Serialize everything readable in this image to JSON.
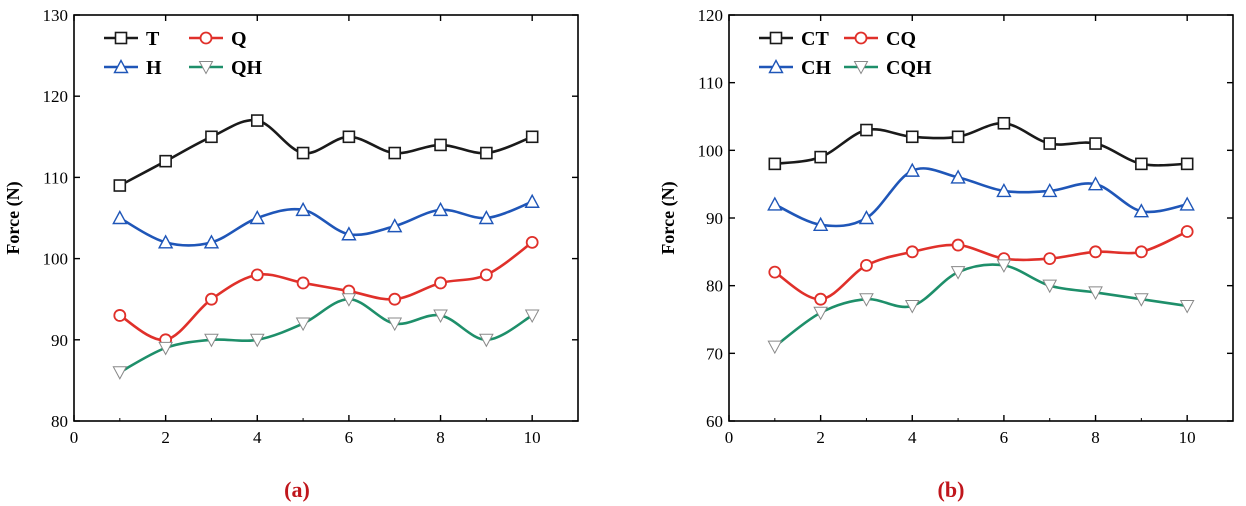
{
  "colors": {
    "T": "#1a1a1a",
    "Q": "#e0302a",
    "H": "#1f56b8",
    "QH": "#1e8f6a",
    "caption": "#c0161c"
  },
  "chart_data": [
    {
      "type": "line",
      "caption": "(a)",
      "ylabel": "Force (N)",
      "xlabel": "",
      "xlim": [
        0,
        11
      ],
      "ylim": [
        80,
        130
      ],
      "xticks": [
        0,
        2,
        4,
        6,
        8,
        10
      ],
      "yticks": [
        80,
        90,
        100,
        110,
        120,
        130
      ],
      "x": [
        1,
        2,
        3,
        4,
        5,
        6,
        7,
        8,
        9,
        10
      ],
      "series": [
        {
          "name": "T",
          "color_key": "T",
          "marker": "square",
          "values": [
            109,
            112,
            115,
            117,
            113,
            115,
            113,
            114,
            113,
            115
          ]
        },
        {
          "name": "Q",
          "color_key": "Q",
          "marker": "circle",
          "values": [
            93,
            90,
            95,
            98,
            97,
            96,
            95,
            97,
            98,
            102
          ]
        },
        {
          "name": "H",
          "color_key": "H",
          "marker": "triangle-up",
          "values": [
            105,
            102,
            102,
            105,
            106,
            103,
            104,
            106,
            105,
            107
          ]
        },
        {
          "name": "QH",
          "color_key": "QH",
          "marker": "triangle-down",
          "values": [
            86,
            89,
            90,
            90,
            92,
            95,
            92,
            93,
            90,
            93
          ]
        }
      ]
    },
    {
      "type": "line",
      "caption": "(b)",
      "ylabel": "Force (N)",
      "xlabel": "",
      "xlim": [
        0,
        11
      ],
      "ylim": [
        60,
        120
      ],
      "xticks": [
        0,
        2,
        4,
        6,
        8,
        10
      ],
      "yticks": [
        60,
        70,
        80,
        90,
        100,
        110,
        120
      ],
      "x": [
        1,
        2,
        3,
        4,
        5,
        6,
        7,
        8,
        9,
        10
      ],
      "series": [
        {
          "name": "CT",
          "color_key": "T",
          "marker": "square",
          "values": [
            98,
            99,
            103,
            102,
            102,
            104,
            101,
            101,
            98,
            98
          ]
        },
        {
          "name": "CQ",
          "color_key": "Q",
          "marker": "circle",
          "values": [
            82,
            78,
            83,
            85,
            86,
            84,
            84,
            85,
            85,
            88
          ]
        },
        {
          "name": "CH",
          "color_key": "H",
          "marker": "triangle-up",
          "values": [
            92,
            89,
            90,
            97,
            96,
            94,
            94,
            95,
            91,
            92
          ]
        },
        {
          "name": "CQH",
          "color_key": "QH",
          "marker": "triangle-down",
          "values": [
            71,
            76,
            78,
            77,
            82,
            83,
            80,
            79,
            78,
            77
          ]
        }
      ]
    }
  ]
}
